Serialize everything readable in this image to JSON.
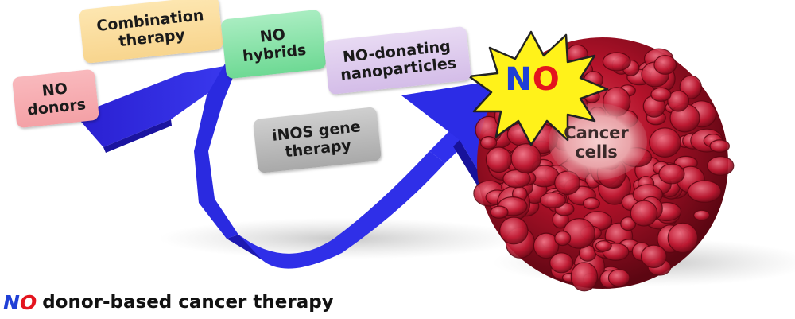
{
  "labels": {
    "no_donors": [
      "NO",
      "donors"
    ],
    "combination": [
      "Combination",
      "therapy"
    ],
    "hybrids": [
      "NO",
      "hybrids"
    ],
    "nanoparticles": [
      "NO-donating",
      "nanoparticles"
    ],
    "inos": [
      "iNOS gene",
      "therapy"
    ]
  },
  "burst": {
    "n": "N",
    "o": "O"
  },
  "cancer": [
    "Cancer",
    "cells"
  ],
  "caption": {
    "n": "N",
    "o": "O",
    "rest": "donor-based cancer therapy"
  },
  "colors": {
    "arrow": "#2b2bd9",
    "no_blue": "#1f3fd6",
    "no_red": "#e4141e",
    "cell": "#b3122a",
    "burst_fill": "#fff21a"
  }
}
